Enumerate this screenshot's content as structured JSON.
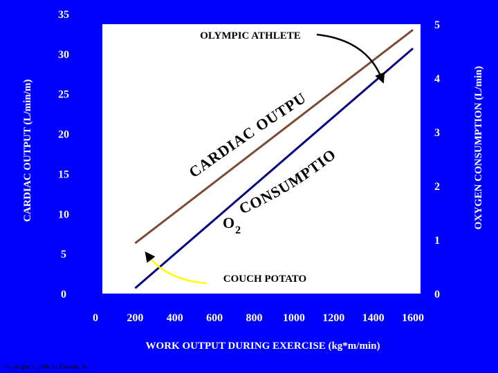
{
  "chart_data": {
    "type": "line",
    "x": [
      200,
      1600
    ],
    "xlabel": "WORK OUTPUT DURING EXERCISE (kg*m/min)",
    "x_ticks": [
      "0",
      "200",
      "400",
      "600",
      "800",
      "1000",
      "1200",
      "1400",
      "1600"
    ],
    "xlim": [
      0,
      1600
    ],
    "ylabel_left": "CARDIAC OUTPUT (L/min/m)",
    "y_left_ticks": [
      "0",
      "5",
      "10",
      "15",
      "20",
      "25",
      "30",
      "35"
    ],
    "ylim_left": [
      0,
      35
    ],
    "ylabel_right": "OXYGEN CONSUMPTION (L/min)",
    "y_right_ticks": [
      "0",
      "1",
      "2",
      "3",
      "4",
      "5"
    ],
    "ylim_right": [
      0,
      5
    ],
    "series": [
      {
        "axis": "left",
        "values": [
          6.3,
          33
        ],
        "color": "#7B4A35"
      },
      {
        "axis": "right",
        "values": [
          0.1,
          4.55
        ],
        "color": "#000080"
      }
    ],
    "curved_labels": [
      "CARDIAC OUTPUT",
      "CONSUMPTION"
    ],
    "o2_label": {
      "o": "O",
      "sub": "2"
    },
    "annotations": [
      "OLYMPIC ATHLETE",
      "COUCH POTATO"
    ],
    "grid": false,
    "legend": "none",
    "plot_background": "#FFFFFF",
    "page_background": "#0000FF"
  },
  "footer": {
    "copyright": "Copyright © 2006 by Elsevier, Inc."
  }
}
